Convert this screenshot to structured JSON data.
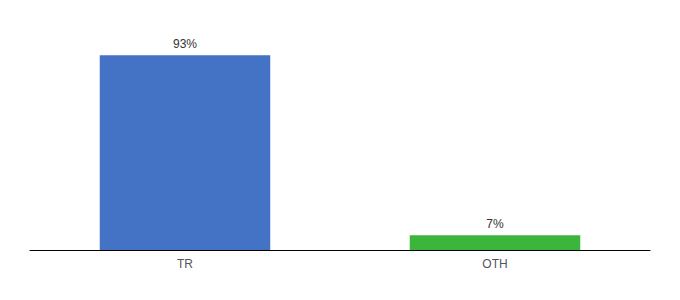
{
  "chart_data": {
    "type": "bar",
    "categories": [
      "TR",
      "OTH"
    ],
    "values": [
      93,
      7
    ],
    "value_labels": [
      "93%",
      "7%"
    ],
    "colors": [
      "#4472c4",
      "#3cb53c"
    ],
    "ylim": [
      0,
      105
    ],
    "grid": false,
    "data_labels": true,
    "tick_labels": "x"
  }
}
